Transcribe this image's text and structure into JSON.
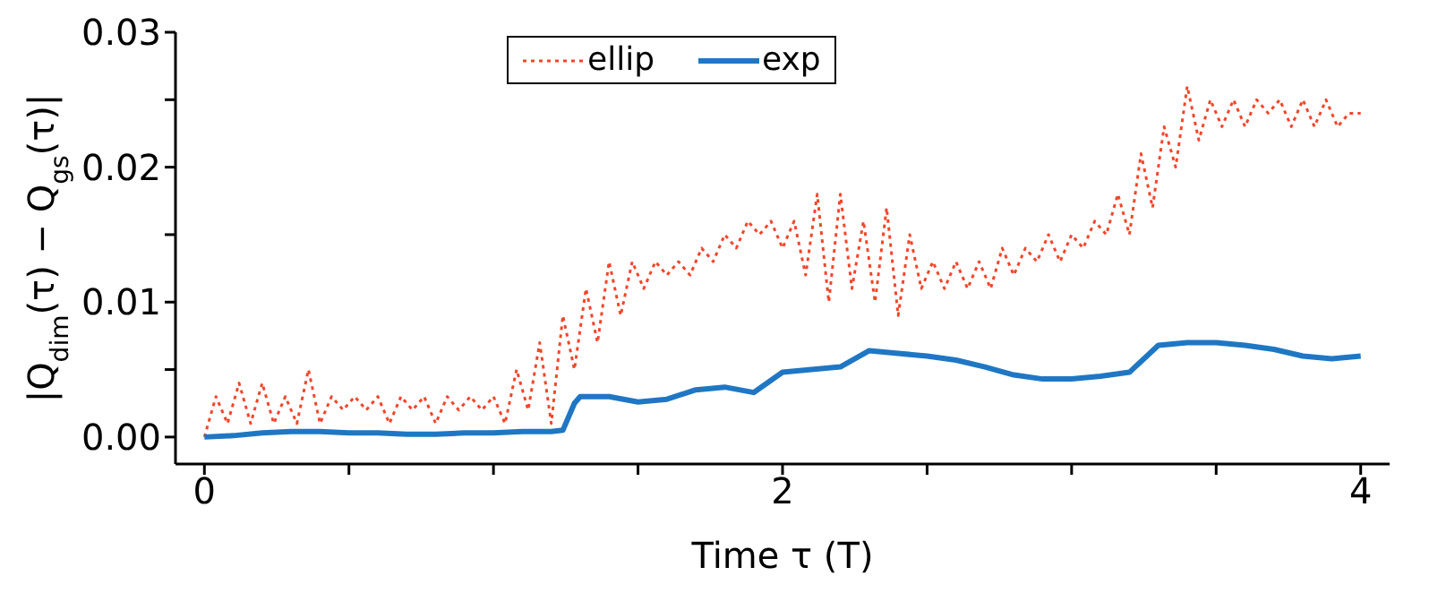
{
  "chart_data": {
    "type": "line",
    "xlabel": "Time τ (T)",
    "ylabel": "|Q$_{dim}$(τ) − Q$_{gs}$(τ)|",
    "xlim": [
      -0.1,
      4.1
    ],
    "xticks": [
      0,
      {
        "value": 0.5,
        "label": null
      },
      {
        "value": 1,
        "label": null
      },
      {
        "value": 1.5,
        "label": null
      },
      2,
      {
        "value": 2.5,
        "label": null
      },
      {
        "value": 3,
        "label": null
      },
      {
        "value": 3.5,
        "label": null
      },
      4
    ],
    "ylim": [
      -0.002,
      0.03
    ],
    "yticks": [
      {
        "value": 0,
        "label": "0.00"
      },
      {
        "value": 0.005,
        "label": null
      },
      0.01,
      {
        "value": 0.015,
        "label": null
      },
      0.02,
      {
        "value": 0.025,
        "label": null
      },
      0.03
    ],
    "legend": "top",
    "marker": "none",
    "series": [
      {
        "name": "ellip",
        "color": "#f2462b",
        "line_style": "dotted",
        "x": [
          0,
          0.04,
          0.08,
          0.12,
          0.16,
          0.2,
          0.24,
          0.28,
          0.32,
          0.36,
          0.4,
          0.44,
          0.48,
          0.52,
          0.56,
          0.6,
          0.64,
          0.68,
          0.72,
          0.76,
          0.8,
          0.84,
          0.88,
          0.92,
          0.96,
          1,
          1.04,
          1.08,
          1.12,
          1.16,
          1.2,
          1.24,
          1.28,
          1.32,
          1.36,
          1.4,
          1.44,
          1.48,
          1.52,
          1.56,
          1.6,
          1.64,
          1.68,
          1.72,
          1.76,
          1.8,
          1.84,
          1.88,
          1.92,
          1.96,
          2,
          2.04,
          2.08,
          2.12,
          2.16,
          2.2,
          2.24,
          2.28,
          2.32,
          2.36,
          2.4,
          2.44,
          2.48,
          2.52,
          2.56,
          2.6,
          2.64,
          2.68,
          2.72,
          2.76,
          2.8,
          2.84,
          2.88,
          2.92,
          2.96,
          3,
          3.04,
          3.08,
          3.12,
          3.16,
          3.2,
          3.24,
          3.28,
          3.32,
          3.36,
          3.4,
          3.44,
          3.48,
          3.52,
          3.56,
          3.6,
          3.64,
          3.68,
          3.72,
          3.76,
          3.8,
          3.84,
          3.88,
          3.92,
          3.96,
          4
        ],
        "values": [
          0,
          0.003,
          0.001,
          0.004,
          0.001,
          0.004,
          0.001,
          0.003,
          0.001,
          0.005,
          0.001,
          0.003,
          0.002,
          0.003,
          0.002,
          0.003,
          0.001,
          0.003,
          0.002,
          0.003,
          0.001,
          0.003,
          0.002,
          0.003,
          0.002,
          0.003,
          0.001,
          0.005,
          0.002,
          0.007,
          0.001,
          0.009,
          0.005,
          0.011,
          0.007,
          0.013,
          0.009,
          0.013,
          0.011,
          0.013,
          0.012,
          0.013,
          0.012,
          0.014,
          0.013,
          0.015,
          0.014,
          0.016,
          0.015,
          0.016,
          0.014,
          0.016,
          0.012,
          0.018,
          0.01,
          0.018,
          0.011,
          0.016,
          0.01,
          0.017,
          0.009,
          0.015,
          0.011,
          0.013,
          0.011,
          0.013,
          0.011,
          0.013,
          0.011,
          0.014,
          0.012,
          0.014,
          0.013,
          0.015,
          0.013,
          0.015,
          0.014,
          0.016,
          0.015,
          0.018,
          0.015,
          0.021,
          0.017,
          0.023,
          0.02,
          0.026,
          0.022,
          0.025,
          0.023,
          0.025,
          0.023,
          0.025,
          0.024,
          0.025,
          0.023,
          0.025,
          0.023,
          0.025,
          0.023,
          0.024,
          0.024
        ]
      },
      {
        "name": "exp",
        "color": "#1f77c4",
        "line_style": "solid",
        "x": [
          0,
          0.1,
          0.2,
          0.3,
          0.4,
          0.5,
          0.6,
          0.7,
          0.8,
          0.9,
          1,
          1.1,
          1.2,
          1.24,
          1.28,
          1.3,
          1.4,
          1.5,
          1.6,
          1.7,
          1.8,
          1.9,
          2,
          2.1,
          2.2,
          2.3,
          2.4,
          2.5,
          2.6,
          2.7,
          2.8,
          2.9,
          3,
          3.1,
          3.2,
          3.3,
          3.4,
          3.5,
          3.6,
          3.7,
          3.8,
          3.9,
          4
        ],
        "values": [
          0,
          0.0001,
          0.0003,
          0.0004,
          0.0004,
          0.0003,
          0.0003,
          0.0002,
          0.0002,
          0.0003,
          0.0003,
          0.0004,
          0.0004,
          0.0005,
          0.0025,
          0.003,
          0.003,
          0.0026,
          0.0028,
          0.0035,
          0.0037,
          0.0033,
          0.0048,
          0.005,
          0.0052,
          0.0064,
          0.0062,
          0.006,
          0.0057,
          0.0052,
          0.0046,
          0.0043,
          0.0043,
          0.0045,
          0.0048,
          0.0068,
          0.007,
          0.007,
          0.0068,
          0.0065,
          0.006,
          0.0058,
          0.006
        ]
      }
    ]
  }
}
